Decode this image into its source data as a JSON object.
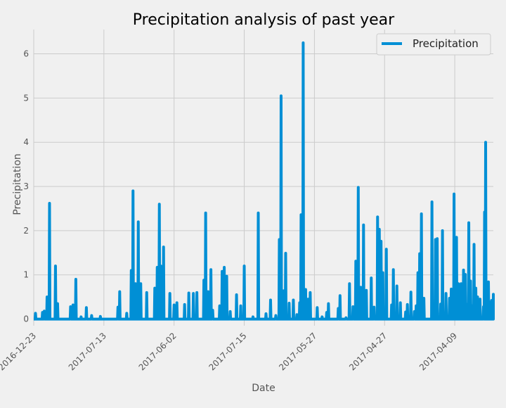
{
  "chart_data": {
    "type": "line",
    "title": "Precipitation analysis of past year",
    "xlabel": "Date",
    "ylabel": "Precipitation",
    "ylim": [
      -0.15,
      6.55
    ],
    "yticks": [
      0,
      1,
      2,
      3,
      4,
      5,
      6
    ],
    "xtick_labels": [
      "2016-12-23",
      "2017-07-13",
      "2017-06-02",
      "2017-07-15",
      "2017-05-27",
      "2017-04-27",
      "2017-04-09"
    ],
    "xtick_positions": [
      0,
      200,
      400,
      600,
      800,
      1000,
      1200
    ],
    "xlim": [
      0,
      1310
    ],
    "grid": true,
    "legend": {
      "position": "top-right",
      "entries": [
        {
          "name": "Precipitation",
          "color": "#008fd5"
        }
      ]
    },
    "series": [
      {
        "name": "Precipitation",
        "color": "#008fd5",
        "peaks": [
          [
            5,
            0.13
          ],
          [
            25,
            0.15
          ],
          [
            30,
            0.18
          ],
          [
            38,
            0.5
          ],
          [
            45,
            2.62
          ],
          [
            62,
            1.2
          ],
          [
            68,
            0.35
          ],
          [
            105,
            0.28
          ],
          [
            112,
            0.32
          ],
          [
            120,
            0.9
          ],
          [
            135,
            0.05
          ],
          [
            150,
            0.26
          ],
          [
            165,
            0.08
          ],
          [
            190,
            0.06
          ],
          [
            240,
            0.27
          ],
          [
            245,
            0.62
          ],
          [
            265,
            0.13
          ],
          [
            278,
            1.1
          ],
          [
            283,
            2.9
          ],
          [
            290,
            0.8
          ],
          [
            298,
            2.2
          ],
          [
            305,
            0.8
          ],
          [
            322,
            0.6
          ],
          [
            345,
            0.7
          ],
          [
            352,
            1.17
          ],
          [
            358,
            2.6
          ],
          [
            362,
            1.2
          ],
          [
            370,
            1.63
          ],
          [
            388,
            0.58
          ],
          [
            400,
            0.32
          ],
          [
            408,
            0.37
          ],
          [
            430,
            0.33
          ],
          [
            442,
            0.59
          ],
          [
            455,
            0.58
          ],
          [
            465,
            0.6
          ],
          [
            485,
            0.88
          ],
          [
            490,
            2.4
          ],
          [
            497,
            0.62
          ],
          [
            505,
            1.12
          ],
          [
            510,
            0.2
          ],
          [
            530,
            0.3
          ],
          [
            537,
            1.08
          ],
          [
            543,
            1.17
          ],
          [
            550,
            0.97
          ],
          [
            560,
            0.17
          ],
          [
            578,
            0.55
          ],
          [
            590,
            0.3
          ],
          [
            600,
            1.2
          ],
          [
            625,
            0.05
          ],
          [
            640,
            2.4
          ],
          [
            662,
            0.12
          ],
          [
            675,
            0.43
          ],
          [
            690,
            0.08
          ],
          [
            700,
            1.8
          ],
          [
            705,
            5.05
          ],
          [
            712,
            0.64
          ],
          [
            718,
            1.49
          ],
          [
            728,
            0.36
          ],
          [
            740,
            0.43
          ],
          [
            750,
            0.1
          ],
          [
            758,
            0.37
          ],
          [
            762,
            2.36
          ],
          [
            768,
            6.25
          ],
          [
            775,
            0.67
          ],
          [
            782,
            0.45
          ],
          [
            788,
            0.6
          ],
          [
            808,
            0.26
          ],
          [
            822,
            0.05
          ],
          [
            835,
            0.15
          ],
          [
            840,
            0.35
          ],
          [
            868,
            0.24
          ],
          [
            873,
            0.53
          ],
          [
            890,
            0.03
          ],
          [
            900,
            0.8
          ],
          [
            910,
            0.28
          ],
          [
            918,
            1.31
          ],
          [
            925,
            2.98
          ],
          [
            932,
            0.72
          ],
          [
            940,
            2.13
          ],
          [
            948,
            0.65
          ],
          [
            962,
            0.93
          ],
          [
            970,
            0.27
          ],
          [
            980,
            2.31
          ],
          [
            985,
            2.03
          ],
          [
            990,
            1.76
          ],
          [
            995,
            1.05
          ],
          [
            1000,
            0.1
          ],
          [
            1005,
            1.58
          ],
          [
            1020,
            0.32
          ],
          [
            1025,
            1.12
          ],
          [
            1035,
            0.75
          ],
          [
            1045,
            0.37
          ],
          [
            1060,
            0.16
          ],
          [
            1065,
            0.33
          ],
          [
            1075,
            0.61
          ],
          [
            1085,
            0.17
          ],
          [
            1090,
            0.3
          ],
          [
            1095,
            1.05
          ],
          [
            1100,
            1.48
          ],
          [
            1105,
            2.38
          ],
          [
            1112,
            0.47
          ],
          [
            1135,
            2.65
          ],
          [
            1145,
            1.8
          ],
          [
            1150,
            1.82
          ],
          [
            1160,
            0.34
          ],
          [
            1165,
            2.0
          ],
          [
            1175,
            0.58
          ],
          [
            1185,
            0.47
          ],
          [
            1190,
            0.68
          ],
          [
            1198,
            2.83
          ],
          [
            1205,
            1.85
          ],
          [
            1210,
            0.8
          ],
          [
            1218,
            0.8
          ],
          [
            1225,
            1.11
          ],
          [
            1230,
            1.01
          ],
          [
            1235,
            0.33
          ],
          [
            1240,
            2.18
          ],
          [
            1245,
            0.86
          ],
          [
            1250,
            0.3
          ],
          [
            1255,
            1.69
          ],
          [
            1260,
            0.7
          ],
          [
            1265,
            0.5
          ],
          [
            1272,
            0.45
          ],
          [
            1282,
            0.28
          ],
          [
            1285,
            2.42
          ],
          [
            1288,
            4.0
          ],
          [
            1292,
            0.4
          ],
          [
            1296,
            0.84
          ],
          [
            1300,
            0.38
          ],
          [
            1305,
            0.42
          ],
          [
            1310,
            0.56
          ]
        ]
      }
    ]
  }
}
